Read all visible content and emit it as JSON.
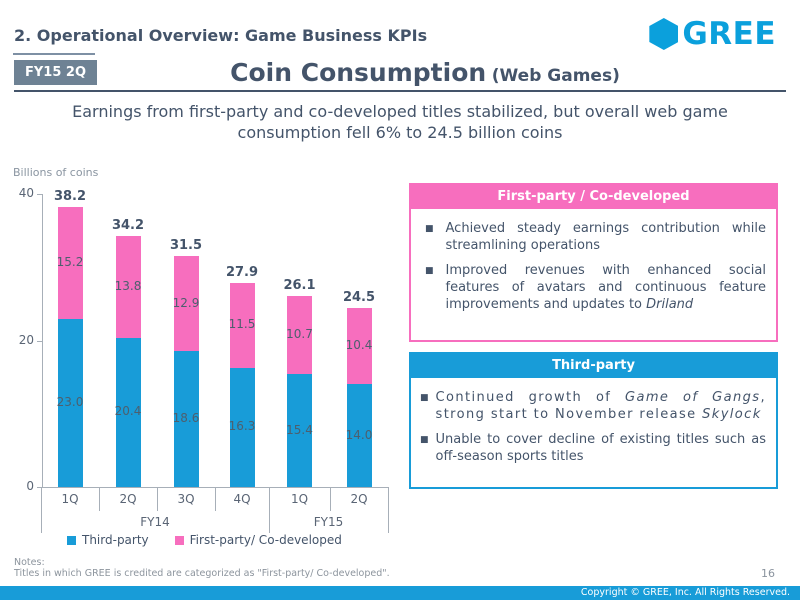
{
  "header": {
    "section_title": "2. Operational Overview: Game Business KPIs",
    "badge": "FY15 2Q",
    "title": "Coin Consumption",
    "title_suffix": "(Web Games)",
    "logo_text": "GREE"
  },
  "subtitle": "Earnings from first-party and co-developed titles stabilized, but overall web game\nconsumption fell 6% to 24.5 billion coins",
  "chart_data": {
    "type": "bar",
    "stacked": true,
    "axis_title": "Billions of coins",
    "categories": [
      "1Q",
      "2Q",
      "3Q",
      "4Q",
      "1Q",
      "2Q"
    ],
    "groups": [
      {
        "label": "FY14",
        "span": 4
      },
      {
        "label": "FY15",
        "span": 2
      }
    ],
    "series": [
      {
        "name": "Third-party",
        "color": "#189CD8",
        "values": [
          23.0,
          20.4,
          18.6,
          16.3,
          15.4,
          14.0
        ]
      },
      {
        "name": "First-party/ Co-developed",
        "color": "#F76EBE",
        "values": [
          15.2,
          13.8,
          12.9,
          11.5,
          10.7,
          10.4
        ]
      }
    ],
    "totals": [
      38.2,
      34.2,
      31.5,
      27.9,
      26.1,
      24.5
    ],
    "yticks": [
      40,
      20,
      0
    ],
    "ylim": [
      0,
      40
    ],
    "legend_position": "bottom"
  },
  "panel_first": {
    "title": "First-party / Co-developed",
    "bullet1": "Achieved steady earnings contribution while streamlining operations",
    "bullet2_text": "Improved revenues with enhanced social features of avatars and continuous feature improvements and updates to ",
    "bullet2_em": "Driland"
  },
  "panel_third": {
    "title": "Third-party",
    "b1_t1": "Continued growth of ",
    "b1_e1": "Game of Gangs",
    "b1_t2": ", strong start to November release ",
    "b1_e2": "Skylock",
    "bullet2": "Unable to cover decline of existing titles such as off-season sports titles"
  },
  "notes": {
    "label": "Notes:",
    "text": "Titles in which GREE is credited are categorized as \"First-party/ Co-developed\"."
  },
  "page_number": "16",
  "footer": {
    "copyright": "Copyright © GREE, Inc. All Rights Reserved."
  },
  "colors": {
    "accent_blue": "#189CD8",
    "accent_pink": "#F76EBE",
    "brand_blue": "#0BA0DC",
    "slate_text": "#44546A",
    "badge_bg": "#6E8294"
  }
}
